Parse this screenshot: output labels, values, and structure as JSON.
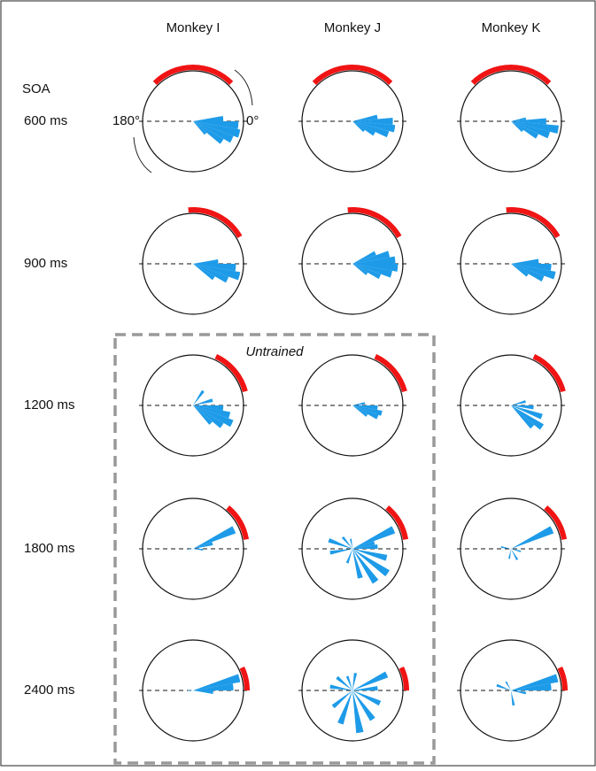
{
  "columns": [
    "Monkey I",
    "Monkey J",
    "Monkey K"
  ],
  "soa_label": "SOA",
  "rows": [
    "600 ms",
    "900 ms",
    "1200 ms",
    "1800 ms",
    "2400 ms"
  ],
  "angle_labels": [
    "180°",
    "0°"
  ],
  "untrained_label": "Untrained",
  "panels": [
    [
      {
        "arc": [
          45,
          135
        ],
        "petals": [
          [
            5,
            0.6
          ],
          [
            -5,
            0.9
          ],
          [
            -15,
            0.95
          ],
          [
            -25,
            0.85
          ],
          [
            -35,
            0.7
          ],
          [
            -45,
            0.35
          ]
        ]
      },
      {
        "arc": [
          45,
          135
        ],
        "petals": [
          [
            10,
            0.5
          ],
          [
            0,
            0.8
          ],
          [
            -10,
            0.85
          ],
          [
            -20,
            0.75
          ],
          [
            -30,
            0.5
          ],
          [
            -40,
            0.3
          ]
        ]
      },
      {
        "arc": [
          45,
          135
        ],
        "petals": [
          [
            10,
            0.3
          ],
          [
            0,
            0.7
          ],
          [
            -10,
            0.95
          ],
          [
            -20,
            0.8
          ],
          [
            -30,
            0.6
          ],
          [
            -40,
            0.3
          ]
        ]
      }
    ],
    [
      {
        "arc": [
          30,
          95
        ],
        "petals": [
          [
            5,
            0.5
          ],
          [
            -5,
            0.85
          ],
          [
            -15,
            0.95
          ],
          [
            -25,
            0.75
          ],
          [
            -35,
            0.5
          ]
        ]
      },
      {
        "arc": [
          30,
          95
        ],
        "petals": [
          [
            25,
            0.5
          ],
          [
            15,
            0.75
          ],
          [
            5,
            0.85
          ],
          [
            -5,
            0.9
          ],
          [
            -15,
            0.8
          ],
          [
            -25,
            0.6
          ],
          [
            -35,
            0.35
          ]
        ]
      },
      {
        "arc": [
          30,
          95
        ],
        "petals": [
          [
            5,
            0.55
          ],
          [
            -5,
            0.8
          ],
          [
            -15,
            0.9
          ],
          [
            -25,
            0.7
          ],
          [
            -35,
            0.4
          ]
        ]
      }
    ],
    [
      {
        "arc": [
          15,
          65
        ],
        "petals": [
          [
            55,
            0.35
          ],
          [
            15,
            0.4
          ],
          [
            -5,
            0.6
          ],
          [
            -15,
            0.75
          ],
          [
            -25,
            0.85
          ],
          [
            -35,
            0.7
          ],
          [
            -45,
            0.5
          ]
        ]
      },
      {
        "arc": [
          15,
          65
        ],
        "petals": [
          [
            10,
            0.25
          ],
          [
            -5,
            0.5
          ],
          [
            -15,
            0.6
          ],
          [
            -25,
            0.55
          ],
          [
            -35,
            0.35
          ]
        ]
      },
      {
        "arc": [
          15,
          65
        ],
        "petals": [
          [
            15,
            0.3
          ],
          [
            -5,
            0.45
          ],
          [
            -20,
            0.65
          ],
          [
            -35,
            0.75
          ],
          [
            -45,
            0.6
          ]
        ]
      }
    ],
    [
      {
        "arc": [
          10,
          50
        ],
        "petals": [
          [
            25,
            0.9
          ],
          [
            15,
            0.4
          ],
          [
            -5,
            0.2
          ],
          [
            185,
            0.1
          ]
        ]
      },
      {
        "arc": [
          10,
          50
        ],
        "petals": [
          [
            25,
            0.9
          ],
          [
            15,
            0.45
          ],
          [
            5,
            0.5
          ],
          [
            -15,
            0.7
          ],
          [
            -35,
            0.85
          ],
          [
            -55,
            0.8
          ],
          [
            -75,
            0.6
          ],
          [
            -110,
            0.3
          ],
          [
            160,
            0.5
          ],
          [
            190,
            0.45
          ],
          [
            130,
            0.3
          ],
          [
            100,
            0.2
          ]
        ]
      },
      {
        "arc": [
          10,
          50
        ],
        "petals": [
          [
            25,
            0.9
          ],
          [
            -15,
            0.2
          ],
          [
            -60,
            0.25
          ],
          [
            -100,
            0.2
          ],
          [
            170,
            0.2
          ]
        ]
      }
    ],
    [
      {
        "arc": [
          0,
          25
        ],
        "petals": [
          [
            15,
            0.95
          ],
          [
            5,
            0.8
          ],
          [
            -5,
            0.4
          ],
          [
            180,
            0.1
          ]
        ]
      },
      {
        "arc": [
          0,
          25
        ],
        "petals": [
          [
            25,
            0.75
          ],
          [
            5,
            0.5
          ],
          [
            -25,
            0.6
          ],
          [
            -55,
            0.7
          ],
          [
            -80,
            0.85
          ],
          [
            -110,
            0.7
          ],
          [
            -140,
            0.5
          ],
          [
            170,
            0.45
          ],
          [
            140,
            0.4
          ],
          [
            110,
            0.3
          ],
          [
            80,
            0.35
          ]
        ]
      },
      {
        "arc": [
          0,
          25
        ],
        "petals": [
          [
            15,
            0.95
          ],
          [
            5,
            0.8
          ],
          [
            -10,
            0.3
          ],
          [
            -80,
            0.3
          ],
          [
            160,
            0.3
          ],
          [
            120,
            0.2
          ]
        ]
      }
    ]
  ]
}
